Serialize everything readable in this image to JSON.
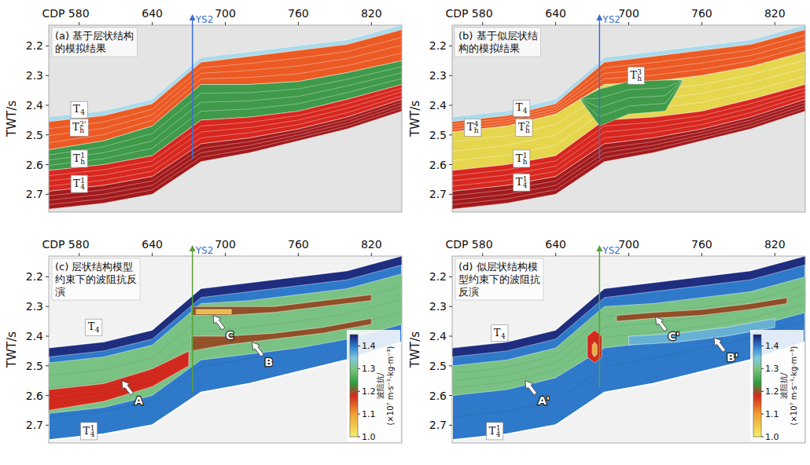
{
  "chart_data": [
    {
      "type": "section",
      "title": "(a) 基于层状结构的模拟结果",
      "ylabel": "TWT/s",
      "xlim": [
        555,
        845
      ],
      "ylim": [
        2.13,
        2.76
      ],
      "xticks": [
        {
          "value": 580,
          "label": "CDP 580"
        },
        640,
        700,
        760,
        820
      ],
      "yticks": [
        2.2,
        2.3,
        2.4,
        2.5,
        2.6,
        2.7
      ],
      "cdp": [
        555,
        600,
        640,
        680,
        720,
        760,
        800,
        845
      ],
      "layers": [
        {
          "color": "#8ecfe6",
          "top": [
            2.44,
            2.42,
            2.38,
            2.24,
            2.22,
            2.2,
            2.18,
            2.13
          ],
          "base": [
            2.455,
            2.435,
            2.395,
            2.255,
            2.235,
            2.215,
            2.195,
            2.145
          ]
        },
        {
          "color": "#ec5a24",
          "top": [
            2.455,
            2.435,
            2.395,
            2.255,
            2.235,
            2.215,
            2.195,
            2.145
          ],
          "base": [
            2.55,
            2.52,
            2.47,
            2.33,
            2.33,
            2.32,
            2.29,
            2.25
          ]
        },
        {
          "color": "#3f9a4a",
          "top": [
            2.55,
            2.52,
            2.47,
            2.33,
            2.33,
            2.32,
            2.29,
            2.25
          ],
          "base": [
            2.62,
            2.6,
            2.57,
            2.45,
            2.44,
            2.42,
            2.38,
            2.33
          ]
        },
        {
          "color": "#d8271f",
          "top": [
            2.62,
            2.6,
            2.57,
            2.45,
            2.44,
            2.42,
            2.38,
            2.33
          ],
          "base": [
            2.69,
            2.67,
            2.64,
            2.53,
            2.51,
            2.48,
            2.44,
            2.38
          ]
        },
        {
          "color": "#a31a1c",
          "top": [
            2.69,
            2.67,
            2.64,
            2.53,
            2.51,
            2.48,
            2.44,
            2.38
          ],
          "base": [
            2.75,
            2.73,
            2.7,
            2.59,
            2.56,
            2.52,
            2.48,
            2.42
          ]
        }
      ],
      "labels": [
        {
          "main": "T",
          "sub": "4",
          "cdp": 580,
          "twt": 2.415
        },
        {
          "main": "T",
          "sub": "h",
          "sup": "2'",
          "cdp": 580,
          "twt": 2.475
        },
        {
          "main": "T",
          "sub": "h",
          "sup": "1",
          "cdp": 580,
          "twt": 2.58
        },
        {
          "main": "T",
          "sub": "4",
          "sup": "1",
          "cdp": 580,
          "twt": 2.665
        }
      ],
      "well": {
        "name": "YS2",
        "cdp": 673,
        "base_twt": 2.58,
        "color": "#3a6fd0"
      },
      "annotations": []
    },
    {
      "type": "section",
      "title": "(b) 基于似层状结构的模拟结果",
      "ylabel": "TWT/s",
      "xlim": [
        555,
        845
      ],
      "ylim": [
        2.13,
        2.76
      ],
      "xticks": [
        {
          "value": 580,
          "label": "CDP 580"
        },
        640,
        700,
        760,
        820
      ],
      "yticks": [
        2.2,
        2.3,
        2.4,
        2.5,
        2.6,
        2.7
      ],
      "cdp": [
        555,
        600,
        640,
        680,
        720,
        760,
        800,
        845
      ],
      "layers": [
        {
          "color": "#8ecfe6",
          "top": [
            2.44,
            2.42,
            2.38,
            2.24,
            2.22,
            2.2,
            2.18,
            2.13
          ],
          "base": [
            2.455,
            2.435,
            2.395,
            2.255,
            2.235,
            2.215,
            2.195,
            2.145
          ]
        },
        {
          "color": "#ec5a24",
          "top": [
            2.455,
            2.435,
            2.395,
            2.255,
            2.235,
            2.215,
            2.195,
            2.145
          ],
          "base": [
            2.49,
            2.47,
            2.43,
            2.33,
            2.32,
            2.3,
            2.27,
            2.22
          ]
        },
        {
          "color": "#e6d64e",
          "top": [
            2.49,
            2.47,
            2.43,
            2.33,
            2.32,
            2.3,
            2.27,
            2.22
          ],
          "base": [
            2.62,
            2.6,
            2.57,
            2.45,
            2.44,
            2.42,
            2.38,
            2.33
          ]
        },
        {
          "color": "#d8271f",
          "top": [
            2.62,
            2.6,
            2.57,
            2.45,
            2.44,
            2.42,
            2.38,
            2.33
          ],
          "base": [
            2.69,
            2.67,
            2.64,
            2.53,
            2.51,
            2.48,
            2.44,
            2.38
          ]
        },
        {
          "color": "#a31a1c",
          "top": [
            2.69,
            2.67,
            2.64,
            2.53,
            2.51,
            2.48,
            2.44,
            2.38
          ],
          "base": [
            2.75,
            2.73,
            2.7,
            2.59,
            2.56,
            2.52,
            2.48,
            2.42
          ]
        },
        {
          "color": "#3f9a4a",
          "cdp": [
            660,
            676,
            700,
            730,
            745
          ],
          "top": [
            2.38,
            2.345,
            2.32,
            2.315,
            2.315
          ],
          "base": [
            2.38,
            2.47,
            2.43,
            2.42,
            2.315
          ]
        }
      ],
      "labels": [
        {
          "main": "T",
          "sub": "4",
          "cdp": 612,
          "twt": 2.41
        },
        {
          "main": "T",
          "sub": "h",
          "sup": "4",
          "cdp": 572,
          "twt": 2.475
        },
        {
          "main": "T",
          "sub": "h",
          "sup": "2",
          "cdp": 614,
          "twt": 2.475
        },
        {
          "main": "T",
          "sub": "h",
          "sup": "3",
          "cdp": 706,
          "twt": 2.3
        },
        {
          "main": "T",
          "sub": "h",
          "sup": "1",
          "cdp": 612,
          "twt": 2.58
        },
        {
          "main": "T",
          "sub": "4",
          "sup": "1",
          "cdp": 612,
          "twt": 2.66
        }
      ],
      "well": {
        "name": "YS2",
        "cdp": 676,
        "base_twt": 2.58,
        "color": "#3a6fd0"
      },
      "annotations": []
    },
    {
      "type": "section",
      "title": "(c) 层状结构模型约束下的波阻抗反演",
      "ylabel": "TWT/s",
      "xlim": [
        555,
        845
      ],
      "ylim": [
        2.13,
        2.76
      ],
      "xticks": [
        {
          "value": 580,
          "label": "CDP 580"
        },
        640,
        700,
        760,
        820
      ],
      "yticks": [
        2.2,
        2.3,
        2.4,
        2.5,
        2.6,
        2.7
      ],
      "cdp": [
        555,
        600,
        640,
        680,
        720,
        760,
        800,
        845
      ],
      "layers": [
        {
          "impedance": 1.4,
          "top": [
            2.44,
            2.42,
            2.38,
            2.24,
            2.22,
            2.2,
            2.18,
            2.13
          ],
          "base": [
            2.75,
            2.73,
            2.7,
            2.59,
            2.56,
            2.52,
            2.48,
            2.42
          ]
        },
        {
          "impedance": 1.44,
          "top": [
            2.44,
            2.42,
            2.38,
            2.24,
            2.22,
            2.2,
            2.18,
            2.13
          ],
          "base": [
            2.47,
            2.45,
            2.41,
            2.27,
            2.25,
            2.23,
            2.21,
            2.16
          ]
        },
        {
          "impedance": 1.3,
          "top": [
            2.49,
            2.47,
            2.43,
            2.29,
            2.28,
            2.26,
            2.24,
            2.19
          ],
          "base": [
            2.66,
            2.64,
            2.6,
            2.48,
            2.46,
            2.44,
            2.41,
            2.36
          ]
        },
        {
          "impedance": 1.18,
          "cdp": [
            555,
            600,
            640,
            670
          ],
          "top": [
            2.58,
            2.56,
            2.51,
            2.45
          ],
          "base": [
            2.65,
            2.62,
            2.57,
            2.5
          ]
        },
        {
          "impedance": 1.2,
          "cdp": [
            672,
            700,
            740,
            780,
            820
          ],
          "top": [
            2.4,
            2.4,
            2.39,
            2.37,
            2.34
          ],
          "base": [
            2.45,
            2.43,
            2.41,
            2.39,
            2.36
          ]
        },
        {
          "impedance": 1.2,
          "cdp": [
            672,
            700,
            740,
            780,
            820
          ],
          "top": [
            2.3,
            2.3,
            2.3,
            2.28,
            2.26
          ],
          "base": [
            2.33,
            2.33,
            2.32,
            2.3,
            2.28
          ]
        },
        {
          "impedance": 1.05,
          "cdp": [
            676,
            690,
            705
          ],
          "top": [
            2.31,
            2.31,
            2.31
          ],
          "base": [
            2.325,
            2.325,
            2.325
          ]
        }
      ],
      "labels": [
        {
          "main": "T",
          "sub": "4",
          "cdp": 592,
          "twt": 2.37
        },
        {
          "main": "T",
          "sub": "4",
          "sup": "1",
          "cdp": 588,
          "twt": 2.72
        }
      ],
      "well": {
        "name": "YS2",
        "cdp": 673,
        "base_twt": 2.59,
        "color": "#5aa03a"
      },
      "annotations": [
        {
          "text": "A",
          "cdp": 615,
          "twt": 2.55
        },
        {
          "text": "B",
          "cdp": 722,
          "twt": 2.42
        },
        {
          "text": "C",
          "cdp": 690,
          "twt": 2.33
        }
      ],
      "colorbar": {
        "label": [
          "波阻抗/",
          "(×10⁷ m·s⁻¹·kg·m⁻³)"
        ],
        "range": [
          1.0,
          1.45
        ],
        "ticks": [
          {
            "value": 1.0,
            "label": "1.0"
          },
          1.1,
          1.2,
          1.3,
          1.4
        ]
      }
    },
    {
      "type": "section",
      "title": "(d) 似层状结构模型约束下的波阻抗反演",
      "ylabel": "TWT/s",
      "xlim": [
        555,
        845
      ],
      "ylim": [
        2.13,
        2.76
      ],
      "xticks": [
        {
          "value": 580,
          "label": "CDP 580"
        },
        640,
        700,
        760,
        820
      ],
      "yticks": [
        2.2,
        2.3,
        2.4,
        2.5,
        2.6,
        2.7
      ],
      "cdp": [
        555,
        600,
        640,
        680,
        720,
        760,
        800,
        845
      ],
      "layers": [
        {
          "impedance": 1.4,
          "top": [
            2.44,
            2.42,
            2.38,
            2.24,
            2.22,
            2.2,
            2.18,
            2.13
          ],
          "base": [
            2.75,
            2.73,
            2.7,
            2.59,
            2.56,
            2.52,
            2.48,
            2.42
          ]
        },
        {
          "impedance": 1.44,
          "top": [
            2.44,
            2.42,
            2.38,
            2.24,
            2.22,
            2.2,
            2.18,
            2.13
          ],
          "base": [
            2.47,
            2.45,
            2.41,
            2.27,
            2.25,
            2.23,
            2.21,
            2.16
          ]
        },
        {
          "impedance": 1.3,
          "top": [
            2.5,
            2.48,
            2.44,
            2.3,
            2.29,
            2.27,
            2.25,
            2.2
          ],
          "base": [
            2.6,
            2.58,
            2.54,
            2.44,
            2.42,
            2.4,
            2.37,
            2.32
          ]
        },
        {
          "impedance": 1.36,
          "cdp": [
            700,
            740,
            780,
            820
          ],
          "top": [
            2.4,
            2.39,
            2.37,
            2.34
          ],
          "base": [
            2.43,
            2.42,
            2.4,
            2.37
          ]
        },
        {
          "impedance": 1.2,
          "cdp": [
            690,
            720,
            760,
            800,
            830
          ],
          "top": [
            2.33,
            2.32,
            2.31,
            2.29,
            2.27
          ],
          "base": [
            2.35,
            2.34,
            2.33,
            2.31,
            2.29
          ]
        },
        {
          "impedance": 1.18,
          "cdp": [
            666,
            672,
            678
          ],
          "top": [
            2.4,
            2.38,
            2.4
          ],
          "base": [
            2.47,
            2.49,
            2.47
          ]
        },
        {
          "impedance": 1.08,
          "cdp": [
            670,
            672,
            674
          ],
          "top": [
            2.43,
            2.42,
            2.43
          ],
          "base": [
            2.46,
            2.47,
            2.46
          ]
        }
      ],
      "labels": [
        {
          "main": "T",
          "sub": "4",
          "cdp": 594,
          "twt": 2.39
        },
        {
          "main": "T",
          "sub": "4",
          "sup": "1",
          "cdp": 590,
          "twt": 2.72
        }
      ],
      "well": {
        "name": "YS2",
        "cdp": 676,
        "base_twt": 2.57,
        "color": "#5aa03a"
      },
      "annotations": [
        {
          "text": "A'",
          "cdp": 615,
          "twt": 2.55
        },
        {
          "text": "B'",
          "cdp": 770,
          "twt": 2.405
        },
        {
          "text": "C'",
          "cdp": 722,
          "twt": 2.335
        }
      ],
      "colorbar": {
        "label": [
          "波阻抗/",
          "(×10⁷ m·s⁻¹·kg·m⁻³)"
        ],
        "range": [
          1.0,
          1.45
        ],
        "ticks": [
          {
            "value": 1.0,
            "label": "1.0"
          },
          1.1,
          1.2,
          1.3,
          1.4
        ]
      }
    }
  ]
}
